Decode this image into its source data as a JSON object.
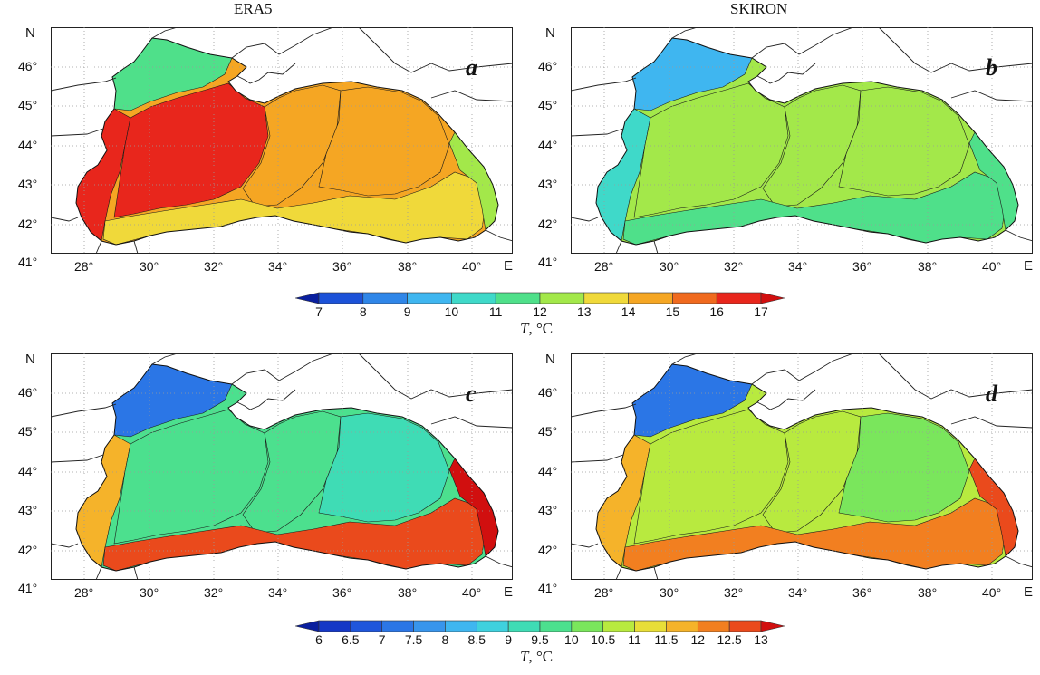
{
  "columns": {
    "left": "ERA5",
    "right": "SKIRON"
  },
  "axis": {
    "north_label": "N",
    "east_label": "E",
    "lat_ticks": [
      "46°",
      "45°",
      "44°",
      "43°",
      "42°",
      "41°"
    ],
    "lon_ticks": [
      "28°",
      "30°",
      "32°",
      "34°",
      "36°",
      "38°",
      "40°"
    ]
  },
  "panels": [
    {
      "label": "a",
      "model": "ERA5",
      "palette": "scale_1",
      "regions": {
        "nw_shelf": 11,
        "west_basin": 16,
        "west_coast": 16.5,
        "center": 14.5,
        "east_basin": 14,
        "south_east": 13,
        "east_coast": 12
      }
    },
    {
      "label": "b",
      "model": "SKIRON",
      "palette": "scale_1",
      "regions": {
        "nw_shelf": 9,
        "west_basin": 12.5,
        "west_coast": 10,
        "center": 12.5,
        "east_basin": 12,
        "south_east": 11.5,
        "east_coast": 11
      }
    },
    {
      "label": "c",
      "model": "ERA5",
      "palette": "scale_2",
      "regions": {
        "nw_shelf": 7,
        "west_basin": 9.5,
        "west_coast": 11.5,
        "center": 9.5,
        "east_basin": 9,
        "south_east": 12.5,
        "east_coast": 13
      }
    },
    {
      "label": "d",
      "model": "SKIRON",
      "palette": "scale_2",
      "regions": {
        "nw_shelf": 7,
        "west_basin": 10.5,
        "west_coast": 11.5,
        "center": 10.5,
        "east_basin": 10,
        "south_east": 12,
        "east_coast": 12.5
      }
    }
  ],
  "colorbars": {
    "scale_1": {
      "ticks": [
        "7",
        "8",
        "9",
        "10",
        "11",
        "12",
        "13",
        "14",
        "15",
        "16",
        "17"
      ],
      "colors": [
        "#0a1f9e",
        "#1c52d8",
        "#2f86e8",
        "#3fb6f0",
        "#3fd9c9",
        "#4fe08a",
        "#a3e84a",
        "#f0d93a",
        "#f5a623",
        "#f06a1e",
        "#e8261c",
        "#d10f0f"
      ],
      "title_var": "T",
      "title_unit": ", °C"
    },
    "scale_2": {
      "ticks": [
        "6",
        "6.5",
        "7",
        "7.5",
        "8",
        "8.5",
        "9",
        "9.5",
        "10",
        "10.5",
        "11",
        "11.5",
        "12",
        "12.5",
        "13"
      ],
      "colors": [
        "#0a1f9e",
        "#1538c6",
        "#1f56db",
        "#2b76e6",
        "#3895ec",
        "#3fb6f0",
        "#3fd1de",
        "#3fdcb5",
        "#4ce08e",
        "#7ae65c",
        "#b8ea3f",
        "#e8de38",
        "#f5b32a",
        "#f27f20",
        "#ea4a1c",
        "#d10f0f"
      ],
      "title_var": "T",
      "title_unit": ", °C"
    }
  }
}
